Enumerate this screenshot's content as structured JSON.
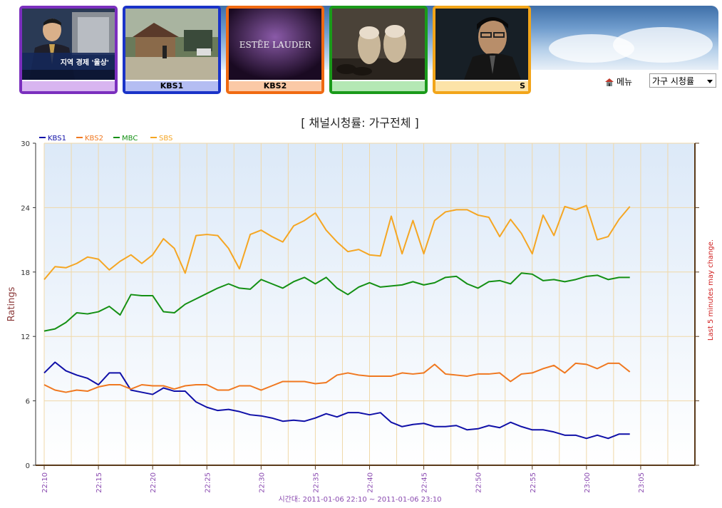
{
  "header": {
    "cards": [
      {
        "label": "",
        "border": "#7b2fbe",
        "capbg": "#d8b5f0",
        "headline": "지역 경제 '울상'"
      },
      {
        "label": "KBS1",
        "border": "#1a33c8",
        "capbg": "#b4bdf2"
      },
      {
        "label": "KBS2",
        "border": "#f06a12",
        "capbg": "#fbc9a6",
        "brand": "ESTĒE LAUDER"
      },
      {
        "label": "",
        "border": "#1a9a1a",
        "capbg": "#b4e8b4"
      },
      {
        "label": "S",
        "border": "#f2a51a",
        "capbg": "#fce3a8"
      }
    ],
    "menu_label": "메뉴",
    "select_value": "가구 시청률"
  },
  "chart_data": {
    "type": "line",
    "title": "[ 채널시청률: 가구전체 ]",
    "ylabel": "Ratings",
    "right_label": "Last 5 minutes may change.",
    "footer": "시간대: 2011-01-06 22:10 ~ 2011-01-06 23:10",
    "ylim": [
      0,
      30
    ],
    "yticks": [
      0,
      6,
      12,
      18,
      24,
      30
    ],
    "xlim": [
      0,
      60
    ],
    "xticks": [
      {
        "x": 0,
        "label": "22:10"
      },
      {
        "x": 5,
        "label": "22:15"
      },
      {
        "x": 10,
        "label": "22:20"
      },
      {
        "x": 15,
        "label": "22:25"
      },
      {
        "x": 20,
        "label": "22:30"
      },
      {
        "x": 25,
        "label": "22:35"
      },
      {
        "x": 30,
        "label": "22:40"
      },
      {
        "x": 35,
        "label": "22:45"
      },
      {
        "x": 40,
        "label": "22:50"
      },
      {
        "x": 45,
        "label": "22:55"
      },
      {
        "x": 50,
        "label": "23:00"
      },
      {
        "x": 55,
        "label": "23:05"
      }
    ],
    "grid": true,
    "legend_position": "top-left",
    "series": [
      {
        "name": "KBS1",
        "color": "#1010a8",
        "values": [
          8.6,
          9.6,
          8.8,
          8.4,
          8.1,
          7.5,
          8.6,
          8.6,
          7.0,
          6.8,
          6.6,
          7.2,
          6.9,
          6.9,
          5.9,
          5.4,
          5.1,
          5.2,
          5.0,
          4.7,
          4.6,
          4.4,
          4.1,
          4.2,
          4.1,
          4.4,
          4.8,
          4.5,
          4.9,
          4.9,
          4.7,
          4.9,
          4.0,
          3.6,
          3.8,
          3.9,
          3.6,
          3.6,
          3.7,
          3.3,
          3.4,
          3.7,
          3.5,
          4.0,
          3.6,
          3.3,
          3.3,
          3.1,
          2.8,
          2.8,
          2.5,
          2.8,
          2.5,
          2.9,
          2.9
        ]
      },
      {
        "name": "KBS2",
        "color": "#f07820",
        "values": [
          7.5,
          7.0,
          6.8,
          7.0,
          6.9,
          7.3,
          7.5,
          7.5,
          7.1,
          7.5,
          7.4,
          7.4,
          7.1,
          7.4,
          7.5,
          7.5,
          7.0,
          7.0,
          7.4,
          7.4,
          7.0,
          7.4,
          7.8,
          7.8,
          7.8,
          7.6,
          7.7,
          8.4,
          8.6,
          8.4,
          8.3,
          8.3,
          8.3,
          8.6,
          8.5,
          8.6,
          9.4,
          8.5,
          8.4,
          8.3,
          8.5,
          8.5,
          8.6,
          7.8,
          8.5,
          8.6,
          9.0,
          9.3,
          8.6,
          9.5,
          9.4,
          9.0,
          9.5,
          9.5,
          8.7
        ]
      },
      {
        "name": "MBC",
        "color": "#149014",
        "values": [
          12.5,
          12.7,
          13.3,
          14.2,
          14.1,
          14.3,
          14.8,
          14.0,
          15.9,
          15.8,
          15.8,
          14.3,
          14.2,
          15.0,
          15.5,
          16.0,
          16.5,
          16.9,
          16.5,
          16.4,
          17.3,
          16.9,
          16.5,
          17.1,
          17.5,
          16.9,
          17.5,
          16.5,
          15.9,
          16.6,
          17.0,
          16.6,
          16.7,
          16.8,
          17.1,
          16.8,
          17.0,
          17.5,
          17.6,
          16.9,
          16.5,
          17.1,
          17.2,
          16.9,
          17.9,
          17.8,
          17.2,
          17.3,
          17.1,
          17.3,
          17.6,
          17.7,
          17.3,
          17.5,
          17.5
        ]
      },
      {
        "name": "SBS",
        "color": "#f5a623",
        "values": [
          17.3,
          18.5,
          18.4,
          18.8,
          19.4,
          19.2,
          18.2,
          19.0,
          19.6,
          18.8,
          19.6,
          21.1,
          20.2,
          17.9,
          21.4,
          21.5,
          21.4,
          20.2,
          18.3,
          21.5,
          21.9,
          21.3,
          20.8,
          22.3,
          22.8,
          23.5,
          21.9,
          20.8,
          19.9,
          20.1,
          19.6,
          19.5,
          23.2,
          19.7,
          22.8,
          19.7,
          22.8,
          23.6,
          23.8,
          23.8,
          23.3,
          23.1,
          21.3,
          22.9,
          21.6,
          19.7,
          23.3,
          21.4,
          24.1,
          23.8,
          24.2,
          21.0,
          21.3,
          22.9,
          24.1
        ]
      }
    ]
  }
}
